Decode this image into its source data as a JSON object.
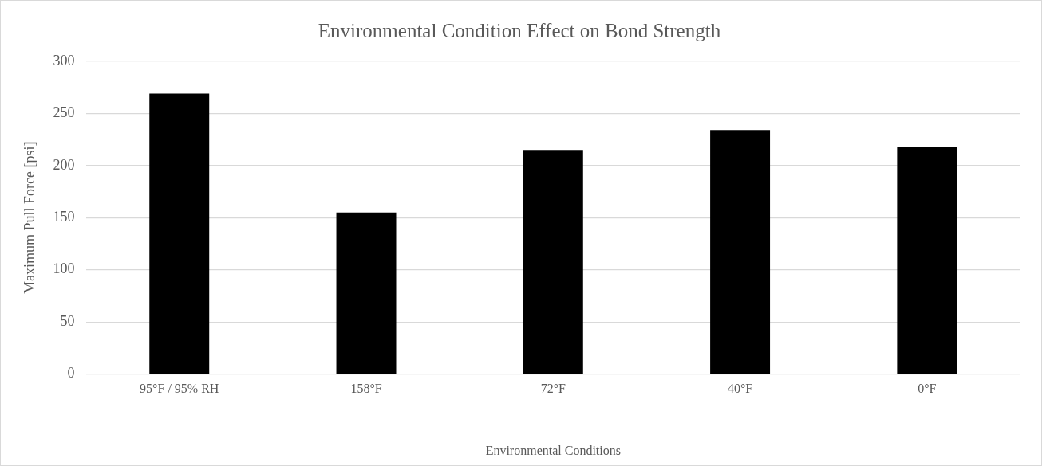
{
  "chart_data": {
    "type": "bar",
    "title": "Environmental Condition Effect on Bond Strength",
    "xlabel": "Environmental Conditions",
    "ylabel": "Maximum Pull Force [psi]",
    "categories": [
      "95°F / 95% RH",
      "158°F",
      "72°F",
      "40°F",
      "0°F"
    ],
    "values": [
      269,
      155,
      215,
      234,
      218
    ],
    "color": "#000000",
    "ylim": [
      0,
      300
    ],
    "yticks": [
      0,
      50,
      100,
      150,
      200,
      250,
      300
    ],
    "grid": "y",
    "legend": false
  }
}
